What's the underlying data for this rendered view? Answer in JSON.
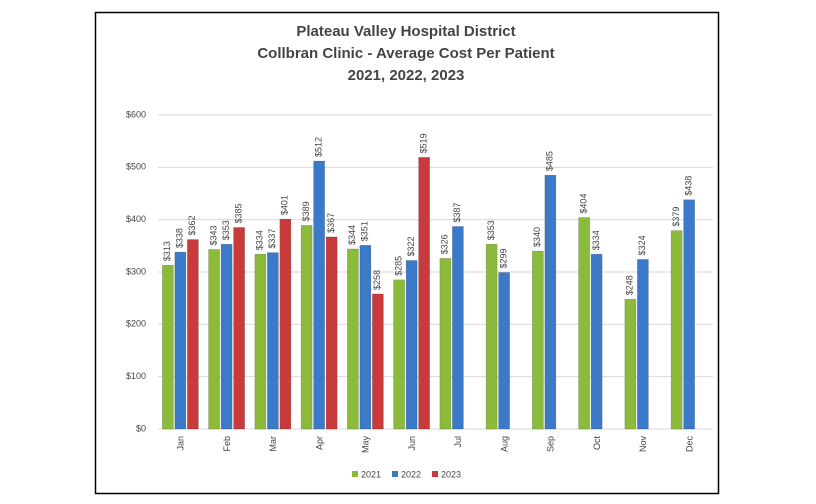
{
  "chart_data": {
    "type": "bar",
    "title": [
      "Plateau Valley Hospital District",
      "Collbran Clinic  - Average Cost Per Patient",
      "2021, 2022, 2023"
    ],
    "categories": [
      "Jan",
      "Feb",
      "Mar",
      "Apr",
      "May",
      "Jun",
      "Jul",
      "Aug",
      "Sep",
      "Oct",
      "Nov",
      "Dec"
    ],
    "series": [
      {
        "name": "2021",
        "color": "#8cbb3c",
        "values": [
          313,
          343,
          334,
          389,
          344,
          285,
          326,
          353,
          340,
          404,
          248,
          379
        ],
        "value_labels": [
          "$313",
          "$343",
          "$334",
          "$389",
          "$344",
          "$285",
          "$326",
          "$353",
          "$340",
          "$404",
          "$248",
          "$379"
        ]
      },
      {
        "name": "2022",
        "color": "#3b79c9",
        "values": [
          338,
          353,
          337,
          512,
          351,
          322,
          387,
          299,
          485,
          334,
          324,
          438
        ],
        "value_labels": [
          "$338",
          "$353",
          "$337",
          "$512",
          "$351",
          "$322",
          "$387",
          "$299",
          "$485",
          "$334",
          "$324",
          "$438"
        ]
      },
      {
        "name": "2023",
        "color": "#c93a3a",
        "values": [
          362,
          385,
          401,
          367,
          258,
          519,
          null,
          null,
          null,
          null,
          null,
          null
        ],
        "value_labels": [
          "$362",
          "$385",
          "$401",
          "$367",
          "$258",
          "$519",
          null,
          null,
          null,
          null,
          null,
          null
        ]
      }
    ],
    "ylim": [
      0,
      600
    ],
    "yticks": [
      {
        "value": 0,
        "label": "$0"
      },
      {
        "value": 100,
        "label": "$100"
      },
      {
        "value": 200,
        "label": "$200"
      },
      {
        "value": 300,
        "label": "$300"
      },
      {
        "value": 400,
        "label": "$400"
      },
      {
        "value": 500,
        "label": "$500"
      },
      {
        "value": 600,
        "label": "$600"
      }
    ],
    "grid": true,
    "legend": "bottom"
  }
}
